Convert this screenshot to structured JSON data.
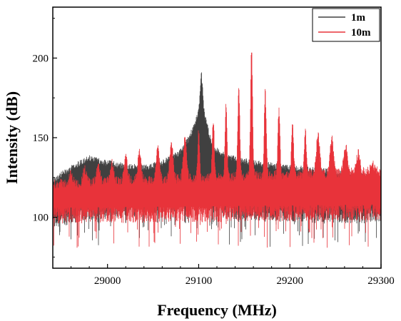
{
  "chart_data": {
    "type": "line",
    "xlabel": "Frequency (MHz)",
    "ylabel": "Intensity (dB)",
    "xlim": [
      28940,
      29300
    ],
    "ylim": [
      68,
      232
    ],
    "xticks": [
      29000,
      29100,
      29200,
      29300
    ],
    "yticks": [
      100,
      150,
      200
    ],
    "legend_position": "top-right",
    "grid": false,
    "series": [
      {
        "name": "1m",
        "color": "#404040",
        "x": [
          28940,
          28960,
          28980,
          29000,
          29020,
          29040,
          29060,
          29080,
          29090,
          29100,
          29103,
          29106,
          29115,
          29130,
          29160,
          29200,
          29240,
          29280,
          29300
        ],
        "y_upper": [
          125,
          133,
          139,
          136,
          134,
          133,
          136,
          143,
          152,
          168,
          193,
          168,
          146,
          140,
          136,
          133,
          131,
          128,
          126
        ],
        "y_lower": [
          92,
          96,
          98,
          99,
          100,
          101,
          102,
          104,
          106,
          108,
          110,
          106,
          102,
          99,
          98,
          97,
          96,
          96,
          96
        ]
      },
      {
        "name": "10m",
        "color": "#e8333a",
        "x": [
          28940,
          29300
        ],
        "band_upper": [
          118,
          126
        ],
        "band_lower": [
          106,
          108
        ],
        "peaks": [
          [
            28960,
            124
          ],
          [
            28975,
            127
          ],
          [
            28990,
            129
          ],
          [
            29005,
            131
          ],
          [
            29020,
            134
          ],
          [
            29035,
            137
          ],
          [
            29055,
            140
          ],
          [
            29070,
            144
          ],
          [
            29085,
            146
          ],
          [
            29100,
            150
          ],
          [
            29116,
            158
          ],
          [
            29130,
            167
          ],
          [
            29144,
            177
          ],
          [
            29158,
            202
          ],
          [
            29173,
            176
          ],
          [
            29188,
            164
          ],
          [
            29203,
            156
          ],
          [
            29217,
            152
          ],
          [
            29231,
            149
          ],
          [
            29246,
            146
          ],
          [
            29261,
            142
          ],
          [
            29275,
            137
          ],
          [
            29290,
            132
          ]
        ]
      }
    ]
  }
}
